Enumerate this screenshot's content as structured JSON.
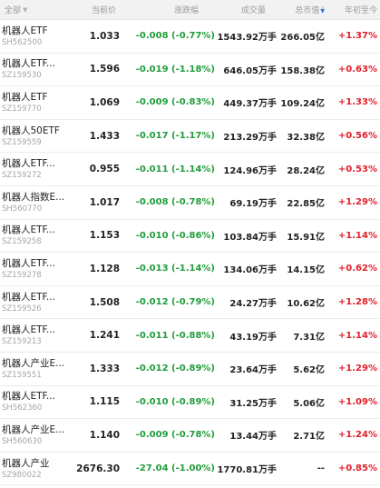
{
  "header": {
    "name": "全部",
    "price": "当前价",
    "change": "涨跌幅",
    "volume": "成交量",
    "mcap": "总市值",
    "ytd": "年初至今"
  },
  "rows": [
    {
      "name": "机器人ETF",
      "code": "SH562500",
      "price": "1.033",
      "change": "-0.008 (-0.77%)",
      "volume": "1543.92万手",
      "mcap": "266.05亿",
      "ytd": "+1.37%"
    },
    {
      "name": "机器人ETF...",
      "code": "SZ159530",
      "price": "1.596",
      "change": "-0.019 (-1.18%)",
      "volume": "646.05万手",
      "mcap": "158.38亿",
      "ytd": "+0.63%"
    },
    {
      "name": "机器人ETF",
      "code": "SZ159770",
      "price": "1.069",
      "change": "-0.009 (-0.83%)",
      "volume": "449.37万手",
      "mcap": "109.24亿",
      "ytd": "+1.33%"
    },
    {
      "name": "机器人50ETF",
      "code": "SZ159559",
      "price": "1.433",
      "change": "-0.017 (-1.17%)",
      "volume": "213.29万手",
      "mcap": "32.38亿",
      "ytd": "+0.56%"
    },
    {
      "name": "机器人ETF...",
      "code": "SZ159272",
      "price": "0.955",
      "change": "-0.011 (-1.14%)",
      "volume": "124.96万手",
      "mcap": "28.24亿",
      "ytd": "+0.53%"
    },
    {
      "name": "机器人指数E...",
      "code": "SH560770",
      "price": "1.017",
      "change": "-0.008 (-0.78%)",
      "volume": "69.19万手",
      "mcap": "22.85亿",
      "ytd": "+1.29%"
    },
    {
      "name": "机器人ETF...",
      "code": "SZ159258",
      "price": "1.153",
      "change": "-0.010 (-0.86%)",
      "volume": "103.84万手",
      "mcap": "15.91亿",
      "ytd": "+1.14%"
    },
    {
      "name": "机器人ETF...",
      "code": "SZ159278",
      "price": "1.128",
      "change": "-0.013 (-1.14%)",
      "volume": "134.06万手",
      "mcap": "14.15亿",
      "ytd": "+0.62%"
    },
    {
      "name": "机器人ETF...",
      "code": "SZ159526",
      "price": "1.508",
      "change": "-0.012 (-0.79%)",
      "volume": "24.27万手",
      "mcap": "10.62亿",
      "ytd": "+1.28%"
    },
    {
      "name": "机器人ETF...",
      "code": "SZ159213",
      "price": "1.241",
      "change": "-0.011 (-0.88%)",
      "volume": "43.19万手",
      "mcap": "7.31亿",
      "ytd": "+1.14%"
    },
    {
      "name": "机器人产业E...",
      "code": "SZ159551",
      "price": "1.333",
      "change": "-0.012 (-0.89%)",
      "volume": "23.64万手",
      "mcap": "5.62亿",
      "ytd": "+1.29%"
    },
    {
      "name": "机器人ETF...",
      "code": "SH562360",
      "price": "1.115",
      "change": "-0.010 (-0.89%)",
      "volume": "31.25万手",
      "mcap": "5.06亿",
      "ytd": "+1.09%"
    },
    {
      "name": "机器人产业E...",
      "code": "SH560630",
      "price": "1.140",
      "change": "-0.009 (-0.78%)",
      "volume": "13.44万手",
      "mcap": "2.71亿",
      "ytd": "+1.24%"
    },
    {
      "name": "机器人产业",
      "code": "SZ980022",
      "price": "2676.30",
      "change": "-27.04 (-1.00%)",
      "volume": "1770.81万手",
      "mcap": "--",
      "ytd": "+0.85%"
    }
  ]
}
